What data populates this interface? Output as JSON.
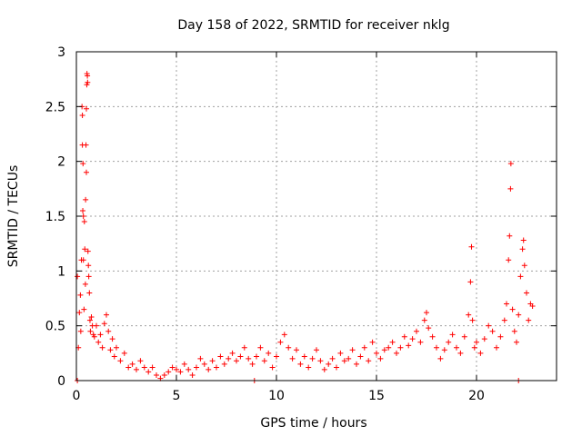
{
  "chart_data": {
    "type": "scatter",
    "title": "Day 158 of 2022, SRMTID for receiver nklg",
    "xlabel": "GPS time / hours",
    "ylabel": "SRMTID / TECUs",
    "xlim": [
      0,
      24
    ],
    "ylim": [
      0,
      3
    ],
    "x_ticks": [
      0,
      5,
      10,
      15,
      20
    ],
    "x_tick_labels": [
      "0",
      "5",
      "10",
      "15",
      "20"
    ],
    "y_ticks": [
      0,
      0.5,
      1,
      1.5,
      2,
      2.5,
      3
    ],
    "y_tick_labels": [
      "0",
      "0.5",
      "1",
      "1.5",
      "2",
      "2.5",
      "3"
    ],
    "grid": true,
    "marker": "+",
    "color": "#ff0000",
    "series": [
      {
        "name": "SRMTID",
        "points": [
          [
            0.05,
            0.95
          ],
          [
            0.1,
            0.3
          ],
          [
            0.15,
            0.62
          ],
          [
            0.2,
            0.78
          ],
          [
            0.22,
            0.45
          ],
          [
            0.25,
            1.1
          ],
          [
            0.28,
            2.5
          ],
          [
            0.3,
            2.42
          ],
          [
            0.3,
            2.15
          ],
          [
            0.32,
            1.55
          ],
          [
            0.33,
            1.98
          ],
          [
            0.35,
            1.5
          ],
          [
            0.35,
            1.1
          ],
          [
            0.38,
            0.65
          ],
          [
            0.4,
            1.45
          ],
          [
            0.42,
            1.2
          ],
          [
            0.45,
            0.88
          ],
          [
            0.46,
            1.65
          ],
          [
            0.48,
            2.15
          ],
          [
            0.5,
            1.9
          ],
          [
            0.5,
            2.48
          ],
          [
            0.52,
            2.7
          ],
          [
            0.53,
            2.8
          ],
          [
            0.55,
            2.78
          ],
          [
            0.56,
            2.72
          ],
          [
            0.58,
            1.18
          ],
          [
            0.6,
            1.05
          ],
          [
            0.62,
            0.95
          ],
          [
            0.65,
            0.8
          ],
          [
            0.68,
            0.55
          ],
          [
            0.7,
            0.45
          ],
          [
            0.75,
            0.58
          ],
          [
            0.8,
            0.5
          ],
          [
            0.85,
            0.42
          ],
          [
            0.9,
            0.4
          ],
          [
            1.0,
            0.5
          ],
          [
            1.1,
            0.35
          ],
          [
            1.2,
            0.42
          ],
          [
            1.3,
            0.3
          ],
          [
            1.4,
            0.52
          ],
          [
            1.5,
            0.6
          ],
          [
            1.6,
            0.45
          ],
          [
            1.7,
            0.28
          ],
          [
            1.8,
            0.38
          ],
          [
            1.9,
            0.22
          ],
          [
            2.0,
            0.3
          ],
          [
            2.2,
            0.18
          ],
          [
            2.4,
            0.25
          ],
          [
            2.6,
            0.12
          ],
          [
            2.8,
            0.15
          ],
          [
            3.0,
            0.1
          ],
          [
            3.2,
            0.18
          ],
          [
            3.4,
            0.12
          ],
          [
            3.6,
            0.08
          ],
          [
            3.8,
            0.12
          ],
          [
            4.0,
            0.05
          ],
          [
            4.2,
            0.02
          ],
          [
            4.4,
            0.05
          ],
          [
            4.6,
            0.08
          ],
          [
            4.8,
            0.12
          ],
          [
            5.0,
            0.1
          ],
          [
            5.2,
            0.08
          ],
          [
            5.4,
            0.15
          ],
          [
            5.6,
            0.1
          ],
          [
            5.8,
            0.05
          ],
          [
            6.0,
            0.12
          ],
          [
            6.2,
            0.2
          ],
          [
            6.4,
            0.15
          ],
          [
            6.6,
            0.1
          ],
          [
            6.8,
            0.18
          ],
          [
            7.0,
            0.12
          ],
          [
            7.2,
            0.22
          ],
          [
            7.4,
            0.15
          ],
          [
            7.6,
            0.2
          ],
          [
            7.8,
            0.25
          ],
          [
            8.0,
            0.18
          ],
          [
            8.2,
            0.22
          ],
          [
            8.4,
            0.3
          ],
          [
            8.6,
            0.2
          ],
          [
            8.8,
            0.15
          ],
          [
            9.0,
            0.22
          ],
          [
            9.2,
            0.3
          ],
          [
            9.4,
            0.18
          ],
          [
            9.6,
            0.25
          ],
          [
            9.8,
            0.12
          ],
          [
            10.0,
            0.22
          ],
          [
            10.2,
            0.35
          ],
          [
            10.4,
            0.42
          ],
          [
            10.6,
            0.3
          ],
          [
            10.8,
            0.2
          ],
          [
            11.0,
            0.28
          ],
          [
            11.2,
            0.15
          ],
          [
            11.4,
            0.22
          ],
          [
            11.6,
            0.12
          ],
          [
            11.8,
            0.2
          ],
          [
            12.0,
            0.28
          ],
          [
            12.2,
            0.18
          ],
          [
            12.4,
            0.1
          ],
          [
            12.6,
            0.15
          ],
          [
            12.8,
            0.2
          ],
          [
            13.0,
            0.12
          ],
          [
            13.2,
            0.25
          ],
          [
            13.4,
            0.18
          ],
          [
            13.6,
            0.2
          ],
          [
            13.8,
            0.28
          ],
          [
            14.0,
            0.15
          ],
          [
            14.2,
            0.22
          ],
          [
            14.4,
            0.3
          ],
          [
            14.6,
            0.18
          ],
          [
            14.8,
            0.35
          ],
          [
            15.0,
            0.25
          ],
          [
            15.2,
            0.2
          ],
          [
            15.4,
            0.28
          ],
          [
            15.6,
            0.3
          ],
          [
            15.8,
            0.35
          ],
          [
            16.0,
            0.25
          ],
          [
            16.2,
            0.3
          ],
          [
            16.4,
            0.4
          ],
          [
            16.6,
            0.32
          ],
          [
            16.8,
            0.38
          ],
          [
            17.0,
            0.45
          ],
          [
            17.2,
            0.35
          ],
          [
            17.4,
            0.55
          ],
          [
            17.5,
            0.62
          ],
          [
            17.6,
            0.48
          ],
          [
            17.8,
            0.4
          ],
          [
            18.0,
            0.3
          ],
          [
            18.2,
            0.2
          ],
          [
            18.4,
            0.28
          ],
          [
            18.6,
            0.35
          ],
          [
            18.8,
            0.42
          ],
          [
            19.0,
            0.3
          ],
          [
            19.2,
            0.25
          ],
          [
            19.4,
            0.4
          ],
          [
            19.6,
            0.6
          ],
          [
            19.7,
            0.9
          ],
          [
            19.75,
            1.22
          ],
          [
            19.8,
            0.55
          ],
          [
            19.9,
            0.3
          ],
          [
            20.0,
            0.35
          ],
          [
            20.2,
            0.25
          ],
          [
            20.4,
            0.38
          ],
          [
            20.6,
            0.5
          ],
          [
            20.8,
            0.45
          ],
          [
            21.0,
            0.3
          ],
          [
            21.2,
            0.4
          ],
          [
            21.4,
            0.55
          ],
          [
            21.5,
            0.7
          ],
          [
            21.6,
            1.1
          ],
          [
            21.65,
            1.32
          ],
          [
            21.7,
            1.75
          ],
          [
            21.72,
            1.98
          ],
          [
            21.8,
            0.65
          ],
          [
            21.9,
            0.45
          ],
          [
            22.0,
            0.35
          ],
          [
            22.1,
            0.6
          ],
          [
            22.2,
            0.95
          ],
          [
            22.3,
            1.2
          ],
          [
            22.35,
            1.28
          ],
          [
            22.4,
            1.05
          ],
          [
            22.5,
            0.8
          ],
          [
            22.6,
            0.55
          ],
          [
            22.7,
            0.7
          ],
          [
            22.8,
            0.68
          ],
          [
            0.05,
            0.0
          ],
          [
            8.9,
            0.0
          ],
          [
            22.1,
            0.0
          ]
        ]
      }
    ]
  }
}
